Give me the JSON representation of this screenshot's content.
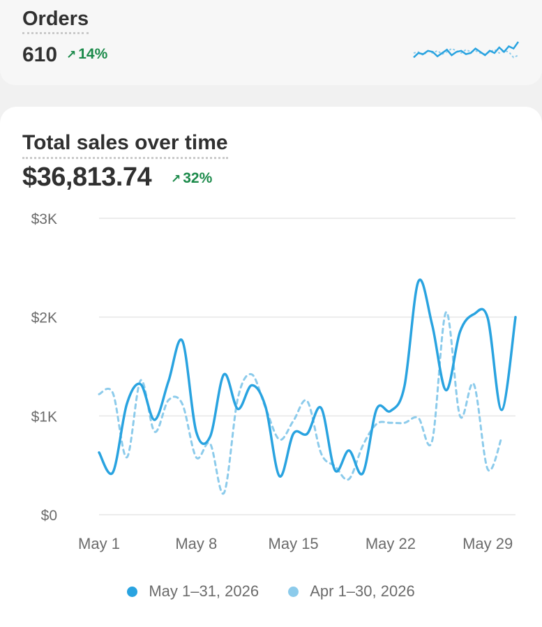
{
  "orders": {
    "title": "Orders",
    "value": "610",
    "change": "14%",
    "sparkline_current": [
      0.3,
      0.5,
      0.45,
      0.6,
      0.55,
      0.35,
      0.5,
      0.65,
      0.4,
      0.55,
      0.6,
      0.45,
      0.5,
      0.7,
      0.55,
      0.4,
      0.6,
      0.5,
      0.75,
      0.55,
      0.8,
      0.7,
      1.0
    ],
    "sparkline_previous": [
      0.5,
      0.55,
      0.4,
      0.6,
      0.5,
      0.6,
      0.45,
      0.55,
      0.7,
      0.6,
      0.5,
      0.65,
      0.55,
      0.6,
      0.5,
      0.45,
      0.55,
      0.65,
      0.5,
      0.6,
      0.55,
      0.3,
      0.4
    ]
  },
  "sales": {
    "title": "Total sales over time",
    "value": "$36,813.74",
    "change": "32%"
  },
  "colors": {
    "current": "#29a3e0",
    "previous": "#8ccbeb",
    "positive": "#1b8a4a",
    "grid": "#e6e6e6"
  },
  "legend": {
    "current": "May 1–31, 2026",
    "previous": "Apr 1–30, 2026"
  },
  "chart_data": {
    "type": "line",
    "ylim": [
      0,
      3000
    ],
    "yticks": [
      "$0",
      "$1K",
      "$2K",
      "$3K"
    ],
    "xticks": [
      "May 1",
      "May 8",
      "May 15",
      "May 22",
      "May 29"
    ],
    "xtick_days": [
      1,
      8,
      15,
      22,
      29
    ],
    "x_count": 31,
    "series": [
      {
        "name": "May 1–31, 2026",
        "style": "solid",
        "values": [
          630,
          430,
          1120,
          1320,
          960,
          1350,
          1760,
          840,
          790,
          1420,
          1070,
          1310,
          1090,
          390,
          820,
          820,
          1080,
          450,
          650,
          420,
          1070,
          1050,
          1300,
          2360,
          1920,
          1260,
          1850,
          2030,
          1990,
          1060,
          2000
        ]
      },
      {
        "name": "Apr 1–30, 2026",
        "style": "dashed",
        "values": [
          1220,
          1230,
          580,
          1360,
          840,
          1160,
          1120,
          580,
          720,
          220,
          1180,
          1420,
          1080,
          760,
          950,
          1150,
          620,
          490,
          360,
          700,
          920,
          930,
          930,
          980,
          750,
          2050,
          1000,
          1320,
          460,
          780
        ]
      }
    ]
  }
}
